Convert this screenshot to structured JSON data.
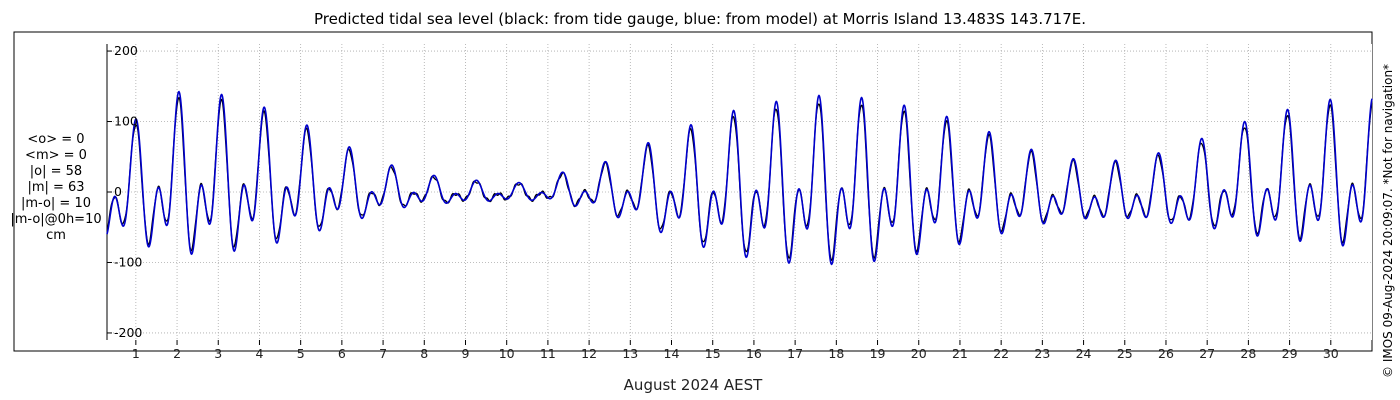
{
  "chart_data": {
    "type": "line",
    "title": "Predicted tidal sea level (black: from tide gauge, blue: from model) at Morris Island 13.483S 143.717E.",
    "xlabel": "August 2024 AEST",
    "ylabel": "",
    "xlim": [
      0.3,
      31.0
    ],
    "ylim": [
      -210,
      210
    ],
    "x_ticks": [
      1,
      2,
      3,
      4,
      5,
      6,
      7,
      8,
      9,
      10,
      11,
      12,
      13,
      14,
      15,
      16,
      17,
      18,
      19,
      20,
      21,
      22,
      23,
      24,
      25,
      26,
      27,
      28,
      29,
      30
    ],
    "y_ticks": [
      -200,
      -100,
      0,
      100,
      200
    ],
    "grid": true,
    "units": "cm",
    "colors": {
      "gauge": "#000000",
      "model": "#0000cc",
      "grid": "#aaaaaa"
    },
    "envelope": {
      "days": [
        0.3,
        0.7,
        1.7,
        2.7,
        3.6,
        4.6,
        5.6,
        6.6,
        7.6,
        8.6,
        9.5,
        10.5,
        11.4,
        12.4,
        13.4,
        14.5,
        15.5,
        16.5,
        17.5,
        18.5,
        19.5,
        20.5,
        21.5,
        22.5,
        23.5,
        24.5,
        25.5,
        26.5,
        27.5,
        28.5,
        29.5,
        30.4,
        31.0
      ],
      "mean": [
        -5,
        -5,
        8,
        8,
        8,
        5,
        5,
        0,
        0,
        -2,
        -2,
        -2,
        2,
        0,
        0,
        -2,
        -2,
        -2,
        0,
        0,
        0,
        0,
        0,
        -5,
        -5,
        -8,
        -5,
        -5,
        5,
        5,
        10,
        10,
        10
      ],
      "amp1": [
        95,
        95,
        140,
        140,
        130,
        108,
        82,
        52,
        32,
        22,
        18,
        15,
        28,
        45,
        72,
        102,
        122,
        135,
        142,
        140,
        130,
        115,
        95,
        72,
        55,
        50,
        55,
        72,
        92,
        108,
        122,
        130,
        130
      ],
      "amp2": [
        60,
        60,
        42,
        32,
        28,
        22,
        16,
        14,
        15,
        15,
        14,
        12,
        12,
        14,
        16,
        16,
        14,
        12,
        10,
        10,
        12,
        14,
        20,
        28,
        40,
        52,
        58,
        55,
        48,
        45,
        45,
        45,
        45
      ]
    },
    "series": [
      {
        "name": "tide gauge",
        "color": "#000000"
      },
      {
        "name": "model",
        "color": "#0000cc"
      }
    ]
  },
  "stats": {
    "lines": [
      "<o> = 0",
      "<m> = 0",
      "|o| = 58",
      "|m| = 63",
      "|m-o| = 10",
      "|m-o|@0h=10",
      "cm"
    ]
  },
  "copyright": "© IMOS 09-Aug-2024 20:09:07. *Not for navigation*"
}
